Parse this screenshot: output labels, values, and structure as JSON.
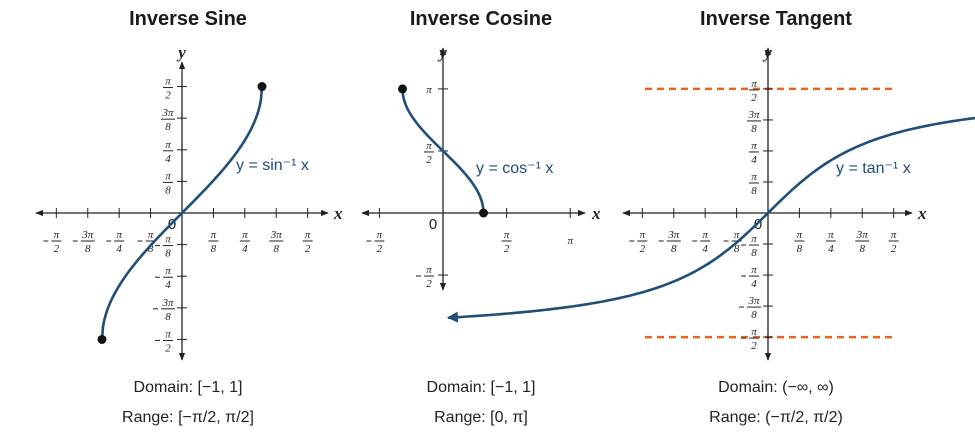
{
  "colors": {
    "curve": "#1f4e79",
    "axis": "#222222",
    "asymptote": "#e8641e",
    "point": "#111111"
  },
  "chart_data": [
    {
      "type": "line",
      "title": "Inverse Sine",
      "xlabel": "x",
      "ylabel": "y",
      "curve_label": "y = sin⁻¹ x",
      "origin_label": "0",
      "x_ticks": [
        "-π/2",
        "-3π/8",
        "-π/4",
        "-π/8",
        "π/8",
        "π/4",
        "3π/8",
        "π/2"
      ],
      "y_ticks": [
        "π/2",
        "3π/8",
        "π/4",
        "π/8",
        "-π/8",
        "-π/4",
        "-3π/8",
        "-π/2"
      ],
      "xlim": [
        -1.6,
        1.6
      ],
      "ylim": [
        -1.6,
        1.6
      ],
      "function": "asin",
      "domain_values": [
        -1,
        1
      ],
      "endpoints": [
        {
          "x": -1,
          "y": -1.5708
        },
        {
          "x": 1,
          "y": 1.5708
        }
      ],
      "domain": "Domain: [−1, 1]",
      "range": "Range: [−π/2, π/2]"
    },
    {
      "type": "line",
      "title": "Inverse Cosine",
      "xlabel": "x",
      "ylabel": "y",
      "curve_label": "y = cos⁻¹ x",
      "origin_label": "0",
      "x_ticks": [
        "-π/2",
        "π/2",
        "π"
      ],
      "y_ticks": [
        "π",
        "π/2",
        "-π/2"
      ],
      "xlim": [
        -1.9,
        3.5
      ],
      "ylim": [
        -2.3,
        3.6
      ],
      "function": "acos",
      "domain_values": [
        -1,
        1
      ],
      "endpoints": [
        {
          "x": -1,
          "y": 3.1416
        },
        {
          "x": 1,
          "y": 0
        }
      ],
      "domain": "Domain: [−1, 1]",
      "range": "Range: [0, π]"
    },
    {
      "type": "line",
      "title": "Inverse Tangent",
      "xlabel": "x",
      "ylabel": "y",
      "curve_label": "y = tan⁻¹ x",
      "origin_label": "0",
      "x_ticks": [
        "-π/2",
        "-3π/8",
        "-π/4",
        "-π/8",
        "π/8",
        "π/4",
        "3π/8",
        "π/2"
      ],
      "y_ticks": [
        "π/2",
        "3π/8",
        "π/4",
        "π/8",
        "-π/8",
        "-π/4",
        "-3π/8",
        "-π/2"
      ],
      "xlim": [
        -1.9,
        1.9
      ],
      "ylim": [
        -1.6,
        1.6
      ],
      "function": "atan",
      "domain_values": [
        -4,
        4
      ],
      "asymptotes": [
        1.5708,
        -1.5708
      ],
      "domain": "Domain: (−∞, ∞)",
      "range": "Range: (−π/2, π/2)"
    }
  ]
}
